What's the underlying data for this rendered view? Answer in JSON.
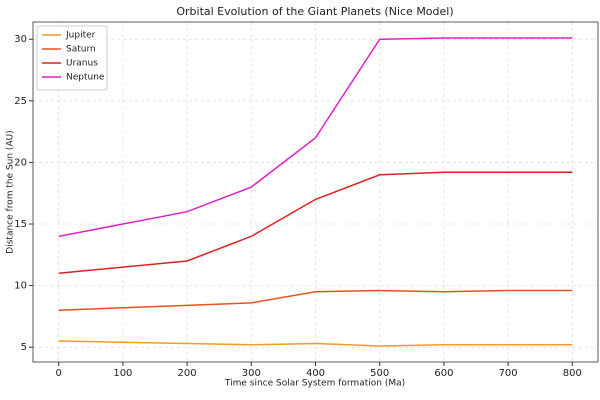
{
  "chart_data": {
    "type": "line",
    "title": "Orbital Evolution of the Giant Planets (Nice Model)",
    "x_label": "Time since Solar System formation (Ma)",
    "y_label": "Distance from the Sun (AU)",
    "x": [
      0,
      100,
      200,
      300,
      400,
      500,
      600,
      700,
      800
    ],
    "series": [
      {
        "name": "Jupiter",
        "color": "#f39c1f",
        "values": [
          5.5,
          5.4,
          5.3,
          5.2,
          5.3,
          5.1,
          5.2,
          5.2,
          5.2
        ]
      },
      {
        "name": "Saturn",
        "color": "#e8521c",
        "values": [
          8.0,
          8.2,
          8.4,
          8.6,
          9.5,
          9.6,
          9.5,
          9.6,
          9.6
        ]
      },
      {
        "name": "Uranus",
        "color": "#dd2222",
        "values": [
          11,
          11.5,
          12,
          14,
          17,
          19,
          19.2,
          19.2,
          19.2
        ]
      },
      {
        "name": "Neptune",
        "color": "#df22c4",
        "values": [
          14,
          15,
          16,
          18,
          22,
          30,
          30.1,
          30.1,
          30.1
        ]
      }
    ],
    "xlim": [
      -40,
      840
    ],
    "xticks": [
      0,
      100,
      200,
      300,
      400,
      500,
      600,
      700,
      800
    ],
    "ylim": [
      3.8,
      31.4
    ],
    "yticks": [
      5,
      10,
      15,
      20,
      25,
      30
    ],
    "grid": true,
    "legend": "upper-left"
  }
}
